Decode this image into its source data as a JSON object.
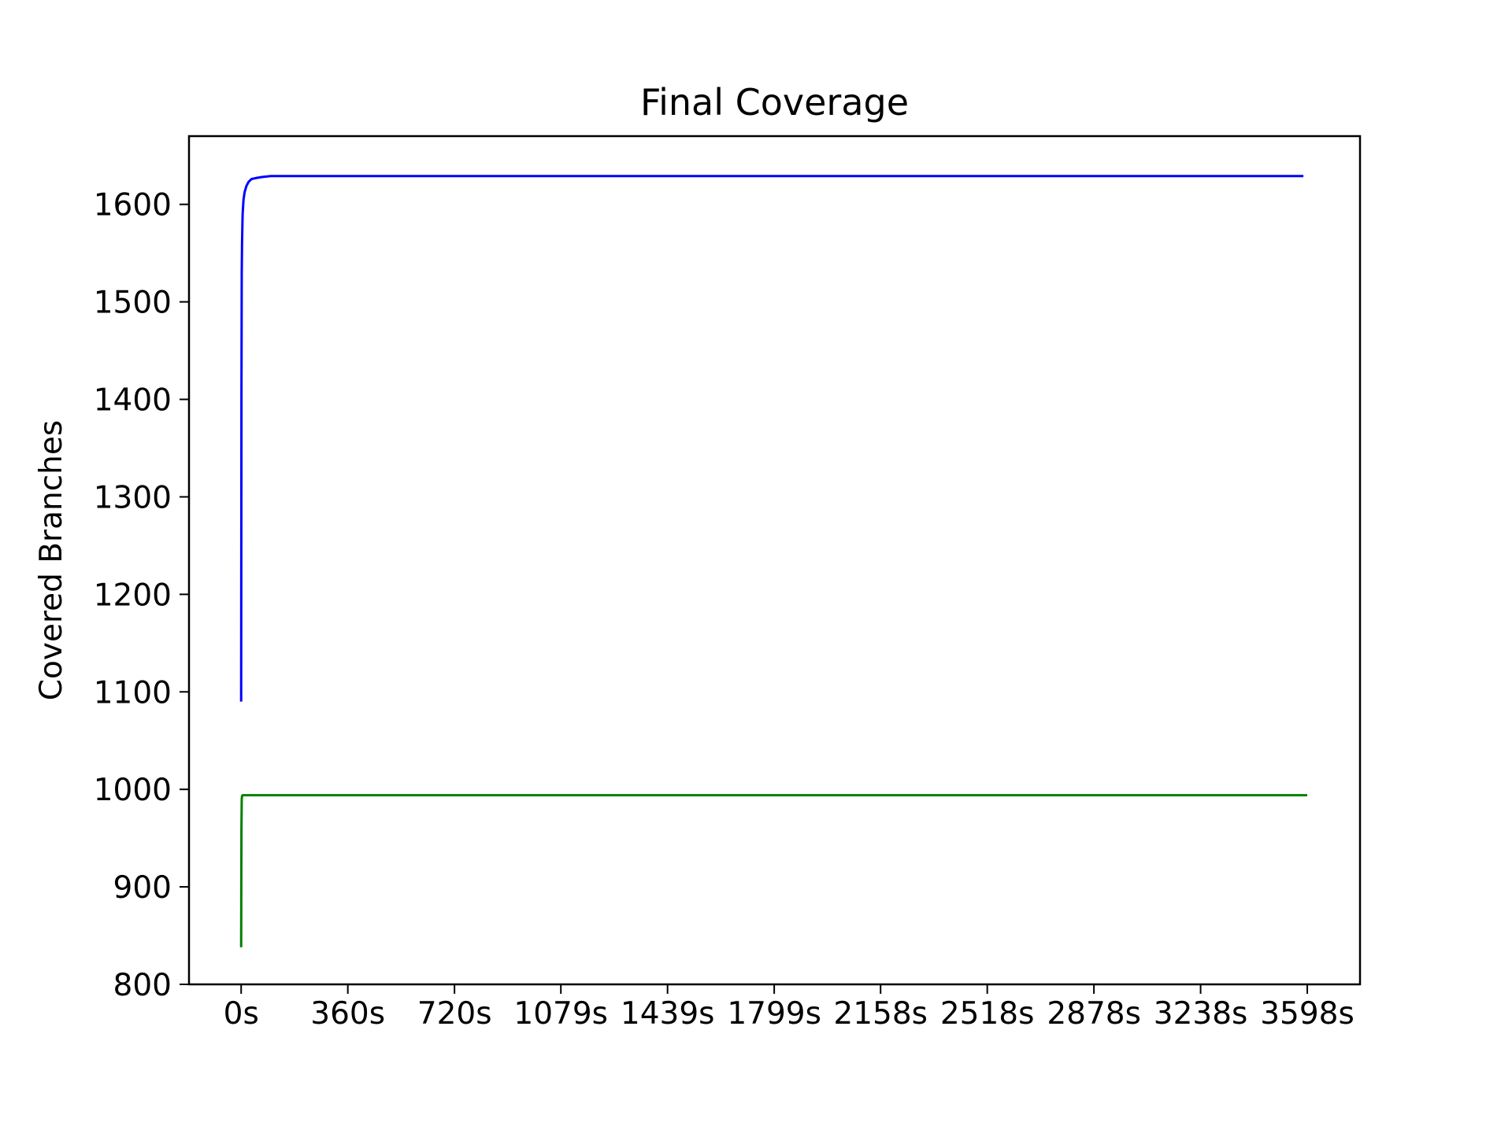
{
  "chart_data": {
    "type": "line",
    "title": "Final Coverage",
    "xlabel": "",
    "ylabel": "Covered Branches",
    "x_unit": "s",
    "xlim": [
      -176,
      3776
    ],
    "ylim": [
      800,
      1670
    ],
    "x_ticks": [
      0,
      360,
      720,
      1079,
      1439,
      1799,
      2158,
      2518,
      2878,
      3238,
      3598
    ],
    "x_tick_labels": [
      "0s",
      "360s",
      "720s",
      "1079s",
      "1439s",
      "1799s",
      "2158s",
      "2518s",
      "2878s",
      "3238s",
      "3598s"
    ],
    "y_ticks": [
      800,
      900,
      1000,
      1100,
      1200,
      1300,
      1400,
      1500,
      1600
    ],
    "y_tick_labels": [
      "800",
      "900",
      "1000",
      "1100",
      "1200",
      "1300",
      "1400",
      "1500",
      "1600"
    ],
    "grid": false,
    "legend": false,
    "series": [
      {
        "color": "#0000ff",
        "x": [
          0,
          1,
          2,
          3,
          5,
          8,
          12,
          18,
          25,
          35,
          50,
          70,
          100,
          150,
          200,
          400,
          800,
          1500,
          2500,
          3585
        ],
        "y": [
          1090,
          1400,
          1530,
          1560,
          1590,
          1605,
          1613,
          1619,
          1623,
          1626,
          1627,
          1628,
          1629,
          1629,
          1629,
          1629,
          1629,
          1629,
          1629,
          1629
        ]
      },
      {
        "color": "#008000",
        "x": [
          0,
          1,
          2,
          3,
          5,
          10,
          50,
          500,
          1500,
          2500,
          3598
        ],
        "y": [
          838,
          960,
          990,
          993,
          994,
          994,
          994,
          994,
          994,
          994,
          994
        ]
      }
    ]
  }
}
